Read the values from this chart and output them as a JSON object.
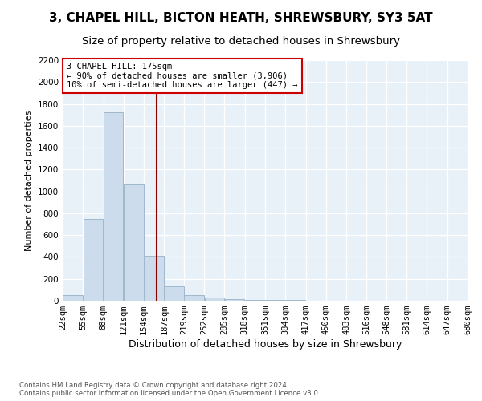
{
  "title": "3, CHAPEL HILL, BICTON HEATH, SHREWSBURY, SY3 5AT",
  "subtitle": "Size of property relative to detached houses in Shrewsbury",
  "xlabel": "Distribution of detached houses by size in Shrewsbury",
  "ylabel": "Number of detached properties",
  "footer_line1": "Contains HM Land Registry data © Crown copyright and database right 2024.",
  "footer_line2": "Contains public sector information licensed under the Open Government Licence v3.0.",
  "property_size": 175,
  "annotation_title": "3 CHAPEL HILL: 175sqm",
  "annotation_line1": "← 90% of detached houses are smaller (3,906)",
  "annotation_line2": "10% of semi-detached houses are larger (447) →",
  "bar_edges": [
    22,
    55,
    88,
    121,
    154,
    187,
    219,
    252,
    285,
    318,
    351,
    384,
    417,
    450,
    483,
    516,
    548,
    581,
    614,
    647,
    680
  ],
  "bar_heights": [
    50,
    750,
    1720,
    1060,
    410,
    130,
    55,
    30,
    15,
    10,
    6,
    4,
    3,
    2,
    2,
    1,
    1,
    0,
    0,
    0
  ],
  "bar_color": "#ccdcec",
  "bar_edge_color": "#a0b8cc",
  "vline_color": "#8b0000",
  "vline_x": 175,
  "ylim": [
    0,
    2200
  ],
  "xlim": [
    22,
    680
  ],
  "bg_color": "#e8f0f8",
  "grid_color": "#ffffff",
  "annotation_box_color": "#cc0000",
  "title_fontsize": 11,
  "subtitle_fontsize": 9.5,
  "tick_fontsize": 7.5,
  "ylabel_fontsize": 8,
  "xlabel_fontsize": 9
}
